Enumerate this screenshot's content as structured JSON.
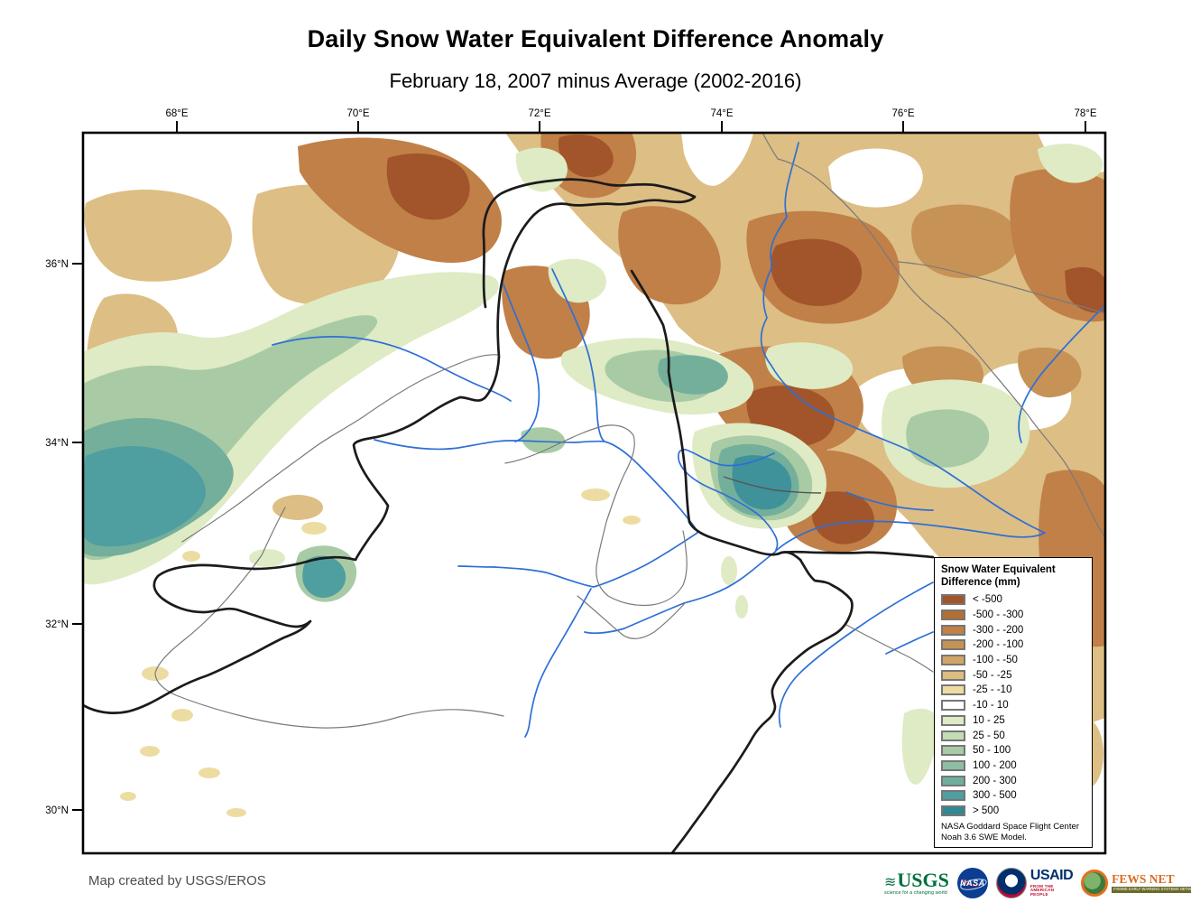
{
  "title": "Daily Snow Water Equivalent Difference Anomaly",
  "subtitle": "February 18, 2007 minus Average (2002-2016)",
  "axis": {
    "top_labels": [
      "68°E",
      "70°E",
      "72°E",
      "74°E",
      "76°E",
      "78°E"
    ],
    "left_labels": [
      "36°N",
      "34°N",
      "32°N",
      "30°N"
    ]
  },
  "legend": {
    "title_line1": "Snow Water Equivalent",
    "title_line2": "Difference (mm)",
    "entries": [
      {
        "label": "< -500",
        "color": "#A2552A"
      },
      {
        "label": "-500 - -300",
        "color": "#B26E33"
      },
      {
        "label": "-300 - -200",
        "color": "#C08048"
      },
      {
        "label": "-200 - -100",
        "color": "#C79255"
      },
      {
        "label": "-100 - -50",
        "color": "#D2A567"
      },
      {
        "label": "-50 - -25",
        "color": "#DDBC80"
      },
      {
        "label": "-25 - -10",
        "color": "#EDDCA2"
      },
      {
        "label": "-10 - 10",
        "color": "#FFFFFF"
      },
      {
        "label": "10 - 25",
        "color": "#DEEBC4"
      },
      {
        "label": "25 - 50",
        "color": "#C3DCB3"
      },
      {
        "label": "50 - 100",
        "color": "#A8CBA5"
      },
      {
        "label": "100 - 200",
        "color": "#8DBEA3"
      },
      {
        "label": "200 - 300",
        "color": "#6FAE9D"
      },
      {
        "label": "300 - 500",
        "color": "#4F9EA0"
      },
      {
        "label": "> 500",
        "color": "#2F8894"
      }
    ],
    "footnote_line1": "NASA Goddard Space Flight Center",
    "footnote_line2": "Noah 3.6 SWE Model.",
    "swatch_border_color": "#767676"
  },
  "map_colors": {
    "river_blue": "#2E6FD6",
    "border_black": "#1b1b1b",
    "admin_gray": "#7a7a7a",
    "frame_black": "#000000"
  },
  "footer": {
    "credit": "Map created by USGS/EROS",
    "logos": [
      {
        "name": "USGS",
        "text": "USGS",
        "tagline": "science for a changing world"
      },
      {
        "name": "NASA",
        "text": "NASA",
        "tagline": ""
      },
      {
        "name": "USAID",
        "text": "USAID",
        "tagline": "FROM THE AMERICAN PEOPLE"
      },
      {
        "name": "FEWS NET",
        "text": "FEWS NET",
        "tagline": "FAMINE EARLY WARNING SYSTEMS NETWORK"
      }
    ]
  }
}
